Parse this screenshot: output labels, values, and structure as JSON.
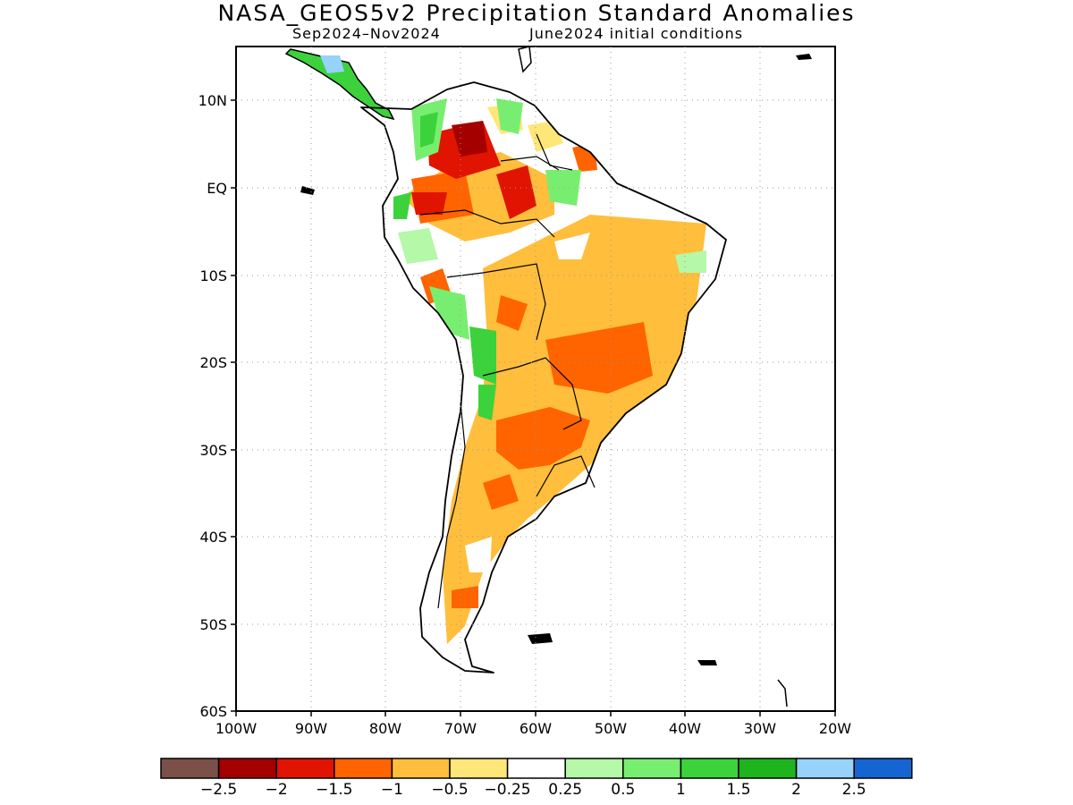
{
  "title": "NASA_GEOS5v2 Precipitation Standard Anomalies",
  "subtitle_left": "Sep2024–Nov2024",
  "subtitle_right": "June2024 initial conditions",
  "lat_ticks": [
    "10N",
    "EQ",
    "10S",
    "20S",
    "30S",
    "40S",
    "50S",
    "60S"
  ],
  "lon_ticks": [
    "100W",
    "90W",
    "80W",
    "70W",
    "60W",
    "50W",
    "40W",
    "30W",
    "20W"
  ],
  "colorbar": {
    "colors": [
      "#7a5048",
      "#a50000",
      "#e01400",
      "#ff6400",
      "#ffbe3c",
      "#ffe678",
      "#ffffff",
      "#b4f8a8",
      "#78ee70",
      "#3cd23c",
      "#1eb41e",
      "#96d2fa",
      "#1464d2"
    ],
    "labels": [
      "−2.5",
      "−2",
      "−1.5",
      "−1",
      "−0.5",
      "−0.25",
      "0.25",
      "0.5",
      "1",
      "1.5",
      "2",
      "2.5"
    ]
  }
}
